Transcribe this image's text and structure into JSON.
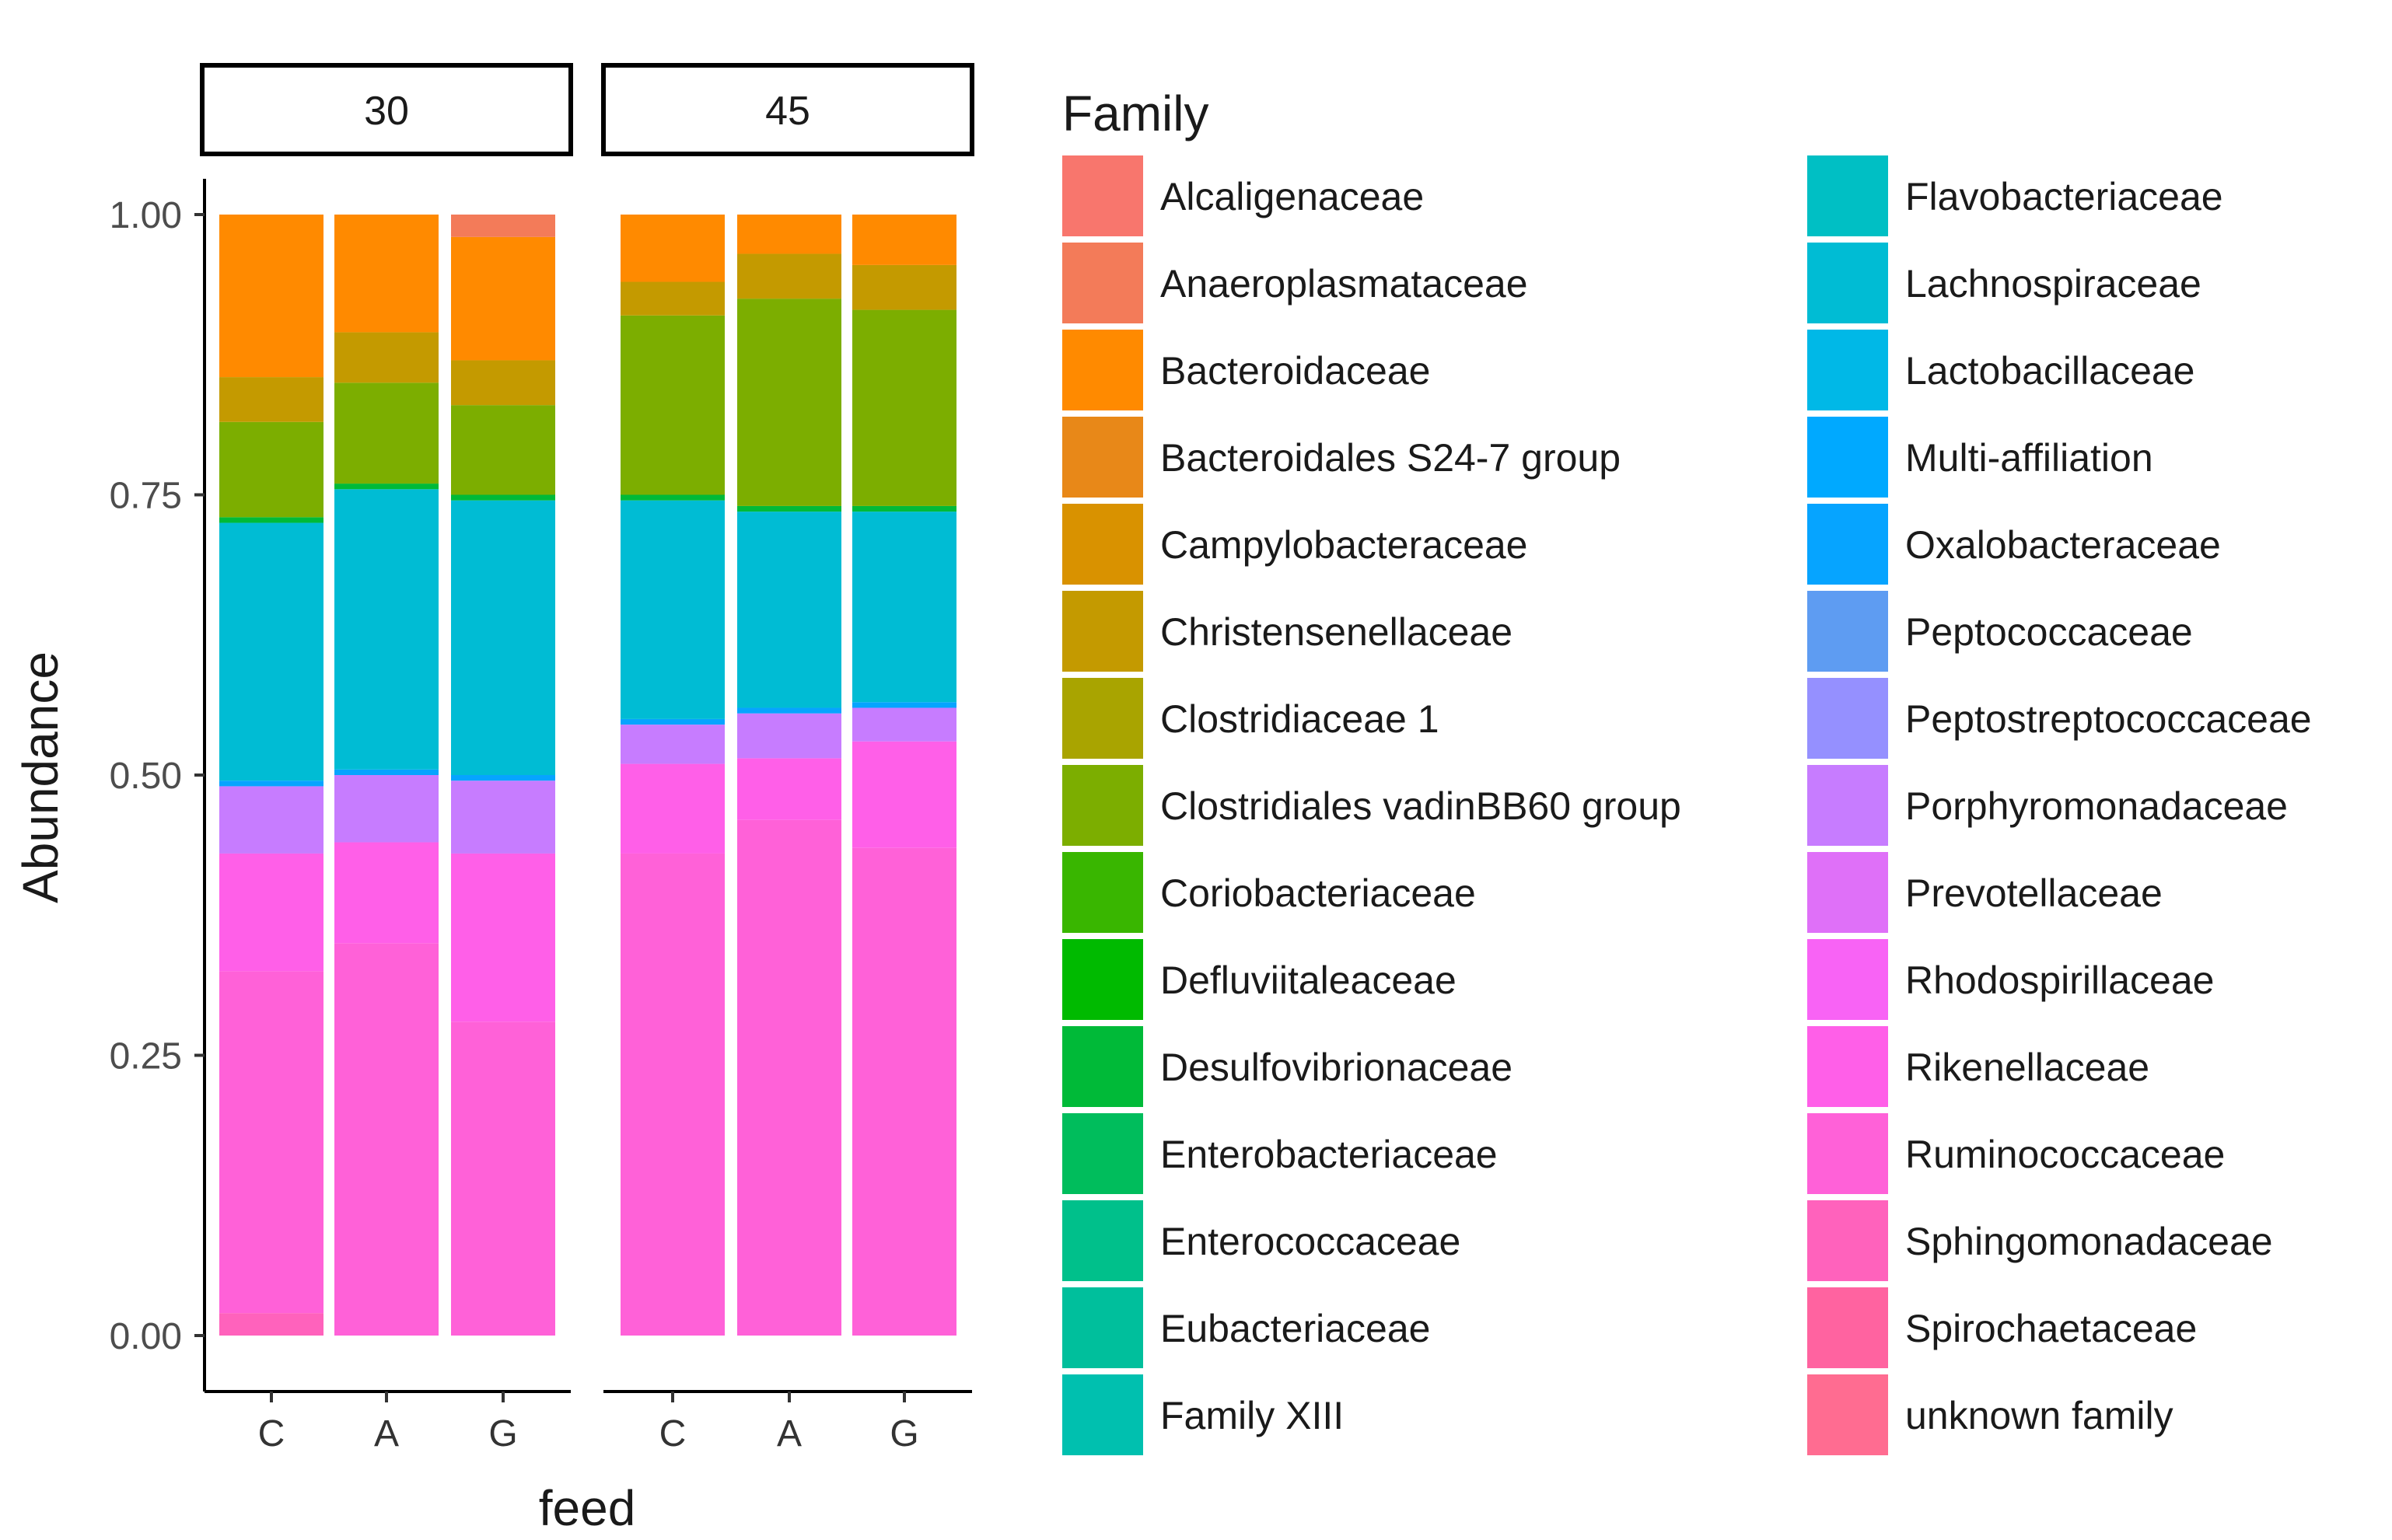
{
  "chart_data": {
    "type": "bar",
    "stacked": true,
    "xlabel": "feed",
    "ylabel": "Abundance",
    "ylim": [
      0,
      1
    ],
    "yticks": [
      "0.00",
      "0.25",
      "0.50",
      "0.75",
      "1.00"
    ],
    "ytick_values": [
      0,
      0.25,
      0.5,
      0.75,
      1.0
    ],
    "legend_title": "Family",
    "panels": [
      {
        "label": "30",
        "categories": [
          "C",
          "A",
          "G"
        ],
        "bars": [
          {
            "category": "C",
            "segments": [
              {
                "family": "Sphingomonadaceae",
                "value": 0.02
              },
              {
                "family": "Ruminococcaceae",
                "value": 0.305
              },
              {
                "family": "Rikenellaceae",
                "value": 0.105
              },
              {
                "family": "Porphyromonadaceae",
                "value": 0.06
              },
              {
                "family": "Oxalobacteraceae",
                "value": 0.005
              },
              {
                "family": "Lachnospiraceae",
                "value": 0.23
              },
              {
                "family": "Desulfovibrionaceae",
                "value": 0.005
              },
              {
                "family": "Clostridiales vadinBB60 group",
                "value": 0.085
              },
              {
                "family": "Christensenellaceae",
                "value": 0.04
              },
              {
                "family": "Bacteroidaceae",
                "value": 0.145
              }
            ]
          },
          {
            "category": "A",
            "segments": [
              {
                "family": "Ruminococcaceae",
                "value": 0.35
              },
              {
                "family": "Rikenellaceae",
                "value": 0.09
              },
              {
                "family": "Porphyromonadaceae",
                "value": 0.06
              },
              {
                "family": "Oxalobacteraceae",
                "value": 0.005
              },
              {
                "family": "Lachnospiraceae",
                "value": 0.25
              },
              {
                "family": "Desulfovibrionaceae",
                "value": 0.005
              },
              {
                "family": "Clostridiales vadinBB60 group",
                "value": 0.09
              },
              {
                "family": "Christensenellaceae",
                "value": 0.045
              },
              {
                "family": "Bacteroidaceae",
                "value": 0.105
              }
            ]
          },
          {
            "category": "G",
            "segments": [
              {
                "family": "Ruminococcaceae",
                "value": 0.28
              },
              {
                "family": "Rikenellaceae",
                "value": 0.15
              },
              {
                "family": "Porphyromonadaceae",
                "value": 0.065
              },
              {
                "family": "Oxalobacteraceae",
                "value": 0.005
              },
              {
                "family": "Lachnospiraceae",
                "value": 0.245
              },
              {
                "family": "Desulfovibrionaceae",
                "value": 0.005
              },
              {
                "family": "Clostridiales vadinBB60 group",
                "value": 0.08
              },
              {
                "family": "Christensenellaceae",
                "value": 0.04
              },
              {
                "family": "Bacteroidaceae",
                "value": 0.11
              },
              {
                "family": "Anaeroplasmataceae",
                "value": 0.02
              }
            ]
          }
        ]
      },
      {
        "label": "45",
        "categories": [
          "C",
          "A",
          "G"
        ],
        "bars": [
          {
            "category": "C",
            "segments": [
              {
                "family": "Ruminococcaceae",
                "value": 0.43
              },
              {
                "family": "Rikenellaceae",
                "value": 0.08
              },
              {
                "family": "Porphyromonadaceae",
                "value": 0.035
              },
              {
                "family": "Oxalobacteraceae",
                "value": 0.005
              },
              {
                "family": "Lachnospiraceae",
                "value": 0.195
              },
              {
                "family": "Desulfovibrionaceae",
                "value": 0.005
              },
              {
                "family": "Clostridiales vadinBB60 group",
                "value": 0.16
              },
              {
                "family": "Christensenellaceae",
                "value": 0.03
              },
              {
                "family": "Bacteroidaceae",
                "value": 0.06
              }
            ]
          },
          {
            "category": "A",
            "segments": [
              {
                "family": "Ruminococcaceae",
                "value": 0.46
              },
              {
                "family": "Rikenellaceae",
                "value": 0.055
              },
              {
                "family": "Porphyromonadaceae",
                "value": 0.04
              },
              {
                "family": "Oxalobacteraceae",
                "value": 0.005
              },
              {
                "family": "Lachnospiraceae",
                "value": 0.175
              },
              {
                "family": "Desulfovibrionaceae",
                "value": 0.005
              },
              {
                "family": "Clostridiales vadinBB60 group",
                "value": 0.185
              },
              {
                "family": "Christensenellaceae",
                "value": 0.04
              },
              {
                "family": "Bacteroidaceae",
                "value": 0.035
              }
            ]
          },
          {
            "category": "G",
            "segments": [
              {
                "family": "Ruminococcaceae",
                "value": 0.435
              },
              {
                "family": "Rikenellaceae",
                "value": 0.095
              },
              {
                "family": "Porphyromonadaceae",
                "value": 0.03
              },
              {
                "family": "Oxalobacteraceae",
                "value": 0.005
              },
              {
                "family": "Lachnospiraceae",
                "value": 0.17
              },
              {
                "family": "Desulfovibrionaceae",
                "value": 0.005
              },
              {
                "family": "Clostridiales vadinBB60 group",
                "value": 0.175
              },
              {
                "family": "Christensenellaceae",
                "value": 0.04
              },
              {
                "family": "Bacteroidaceae",
                "value": 0.045
              }
            ]
          }
        ]
      }
    ],
    "families": [
      {
        "name": "Alcaligenaceae",
        "color": "#F8766D"
      },
      {
        "name": "Anaeroplasmataceae",
        "color": "#F37B59"
      },
      {
        "name": "Bacteroidaceae",
        "color": "#FF8A00"
      },
      {
        "name": "Bacteroidales S24-7 group",
        "color": "#E88818"
      },
      {
        "name": "Campylobacteraceae",
        "color": "#D99200"
      },
      {
        "name": "Christensenellaceae",
        "color": "#C49A00"
      },
      {
        "name": "Clostridiaceae 1",
        "color": "#A9A400"
      },
      {
        "name": "Clostridiales vadinBB60 group",
        "color": "#7CAE00"
      },
      {
        "name": "Coriobacteriaceae",
        "color": "#39B600"
      },
      {
        "name": "Defluviitaleaceae",
        "color": "#00BA00"
      },
      {
        "name": "Desulfovibrionaceae",
        "color": "#00BA38"
      },
      {
        "name": "Enterobacteriaceae",
        "color": "#00BD5C"
      },
      {
        "name": "Enterococcaceae",
        "color": "#00C08B"
      },
      {
        "name": "Eubacteriaceae",
        "color": "#00BF9C"
      },
      {
        "name": "Family XIII",
        "color": "#00C0AF"
      },
      {
        "name": "Flavobacteriaceae",
        "color": "#00BFC4"
      },
      {
        "name": "Lachnospiraceae",
        "color": "#00BCD4"
      },
      {
        "name": "Lactobacillaceae",
        "color": "#00B8E7"
      },
      {
        "name": "Multi-affiliation",
        "color": "#00A9FF"
      },
      {
        "name": "Oxalobacteraceae",
        "color": "#06A4FF"
      },
      {
        "name": "Peptococcaceae",
        "color": "#5E9CF2"
      },
      {
        "name": "Peptostreptococcaceae",
        "color": "#9590FF"
      },
      {
        "name": "Porphyromonadaceae",
        "color": "#C77CFF"
      },
      {
        "name": "Prevotellaceae",
        "color": "#DF70F8"
      },
      {
        "name": "Rhodospirillaceae",
        "color": "#F863F5"
      },
      {
        "name": "Rikenellaceae",
        "color": "#FF5FE8"
      },
      {
        "name": "Ruminococcaceae",
        "color": "#FF61D8"
      },
      {
        "name": "Sphingomonadaceae",
        "color": "#FF62BC"
      },
      {
        "name": "Spirochaetaceae",
        "color": "#FF63A0"
      },
      {
        "name": "unknown family",
        "color": "#FF6C91"
      }
    ]
  }
}
